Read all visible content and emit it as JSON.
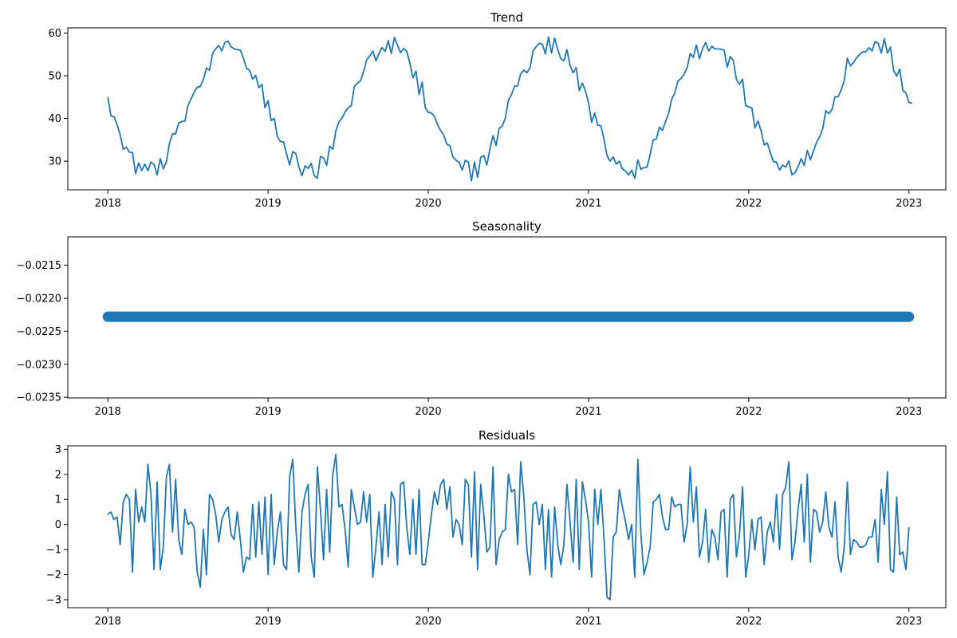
{
  "chart_data": [
    {
      "type": "line",
      "title": "Trend",
      "xlabel": "",
      "ylabel": "",
      "xlim": [
        2017.75,
        2023.23
      ],
      "ylim": [
        23.3,
        61.2
      ],
      "x_ticks": [
        2018,
        2019,
        2020,
        2021,
        2022,
        2023
      ],
      "x_tick_labels": [
        "2018",
        "2019",
        "2020",
        "2021",
        "2022",
        "2023"
      ],
      "y_ticks": [
        30,
        40,
        50,
        60
      ],
      "y_tick_labels": [
        "30",
        "40",
        "50",
        "60"
      ],
      "grid": false,
      "color": "#1f77b4",
      "series": [
        {
          "x_start": 2018.0,
          "x_step": 0.019231,
          "values": [
            45.0,
            40.6,
            40.4,
            38.5,
            36.2,
            32.8,
            33.3,
            32.1,
            32.0,
            27.1,
            29.6,
            27.8,
            29.3,
            27.8,
            29.8,
            29.2,
            26.8,
            30.6,
            28.2,
            29.8,
            34.2,
            36.4,
            36.4,
            38.9,
            39.3,
            39.4,
            43.0,
            44.6,
            46.1,
            47.3,
            47.5,
            49.1,
            51.8,
            51.3,
            55.2,
            56.3,
            57.1,
            55.8,
            57.8,
            58.1,
            56.8,
            56.3,
            56.1,
            56.0,
            54.1,
            51.8,
            51.2,
            49.2,
            50.1,
            47.2,
            48.0,
            42.5,
            44.2,
            39.5,
            40.0,
            35.8,
            34.6,
            34.5,
            31.7,
            29.1,
            32.2,
            31.8,
            28.6,
            26.6,
            28.9,
            28.3,
            29.5,
            26.6,
            26.0,
            31.1,
            30.8,
            29.0,
            33.5,
            32.8,
            37.1,
            39.2,
            40.1,
            41.5,
            42.5,
            43.0,
            47.5,
            48.3,
            48.8,
            51.0,
            53.7,
            54.6,
            55.8,
            53.5,
            55.2,
            56.6,
            55.7,
            58.2,
            55.2,
            59.0,
            57.2,
            55.4,
            56.4,
            55.7,
            53.0,
            49.5,
            51.1,
            45.6,
            48.5,
            42.6,
            41.4,
            41.3,
            40.5,
            38.5,
            37.2,
            36.1,
            34.0,
            33.6,
            31.0,
            30.2,
            29.7,
            27.9,
            30.2,
            29.8,
            25.4,
            29.8,
            26.2,
            30.9,
            31.3,
            29.1,
            32.8,
            36.0,
            33.7,
            37.7,
            38.2,
            40.1,
            44.3,
            45.6,
            47.6,
            47.6,
            50.5,
            51.3,
            50.7,
            51.9,
            55.8,
            56.8,
            57.6,
            57.4,
            55.1,
            59.1,
            55.3,
            58.8,
            56.1,
            54.0,
            53.5,
            56.1,
            52.4,
            50.7,
            51.9,
            46.5,
            48.3,
            46.4,
            43.7,
            39.1,
            41.3,
            38.4,
            38.3,
            35.2,
            31.3,
            30.0,
            31.0,
            29.3,
            30.0,
            28.2,
            27.7,
            26.8,
            27.9,
            26.0,
            30.3,
            28.1,
            28.5,
            28.6,
            31.6,
            35.0,
            35.2,
            38.0,
            37.2,
            39.3,
            41.2,
            44.5,
            46.0,
            48.7,
            49.4,
            50.3,
            51.9,
            55.2,
            54.3,
            57.2,
            54.0,
            56.3,
            57.8,
            55.8,
            56.9,
            56.3,
            56.3,
            56.2,
            56.0,
            52.0,
            54.5,
            53.5,
            49.1,
            48.0,
            49.2,
            43.0,
            42.7,
            42.5,
            37.8,
            39.4,
            37.1,
            33.8,
            34.3,
            32.0,
            29.9,
            29.8,
            27.9,
            29.1,
            28.6,
            30.1,
            26.8,
            27.3,
            28.7,
            30.6,
            29.0,
            32.5,
            30.3,
            32.4,
            34.4,
            35.7,
            37.6,
            41.8,
            41.1,
            42.1,
            45.1,
            45.1,
            46.7,
            48.9,
            54.1,
            52.3,
            53.1,
            54.2,
            55.0,
            55.6,
            55.6,
            56.6,
            55.8,
            58.0,
            57.6,
            55.3,
            58.7,
            55.3,
            56.7,
            51.3,
            49.9,
            51.6,
            46.6,
            45.9,
            43.8,
            43.5
          ]
        }
      ]
    },
    {
      "type": "scatter",
      "title": "Seasonality",
      "xlabel": "",
      "ylabel": "",
      "xlim": [
        2017.75,
        2023.23
      ],
      "ylim": [
        -0.02351,
        -0.02107
      ],
      "x_ticks": [
        2018,
        2019,
        2020,
        2021,
        2022,
        2023
      ],
      "x_tick_labels": [
        "2018",
        "2019",
        "2020",
        "2021",
        "2022",
        "2023"
      ],
      "y_ticks": [
        -0.0215,
        -0.022,
        -0.0225,
        -0.023,
        -0.0235
      ],
      "y_tick_labels": [
        "−0.0215",
        "−0.0220",
        "−0.0225",
        "−0.0230",
        "−0.0235"
      ],
      "grid": false,
      "color": "#1f77b4",
      "series": [
        {
          "x_range": [
            2018.0,
            2023.0
          ],
          "constant_value": -0.02228
        }
      ]
    },
    {
      "type": "line",
      "title": "Residuals",
      "xlabel": "",
      "ylabel": "",
      "xlim": [
        2017.75,
        2023.23
      ],
      "ylim": [
        -3.32,
        3.14
      ],
      "x_ticks": [
        2018,
        2019,
        2020,
        2021,
        2022,
        2023
      ],
      "x_tick_labels": [
        "2018",
        "2019",
        "2020",
        "2021",
        "2022",
        "2023"
      ],
      "y_ticks": [
        3,
        2,
        1,
        0,
        -1,
        -2,
        -3
      ],
      "y_tick_labels": [
        "3",
        "2",
        "1",
        "0",
        "−1",
        "−2",
        "−3"
      ],
      "grid": false,
      "color": "#1f77b4",
      "series": [
        {
          "x_start": 2018.0,
          "x_step": 0.019231,
          "values": [
            0.4,
            0.5,
            0.2,
            0.3,
            -0.8,
            0.9,
            1.2,
            1.0,
            -1.9,
            1.4,
            0.1,
            0.7,
            0.1,
            2.4,
            1.2,
            -1.8,
            1.7,
            -1.8,
            -0.9,
            1.9,
            2.4,
            -0.3,
            1.8,
            -0.6,
            -1.2,
            0.6,
            0.0,
            0.1,
            -0.1,
            -1.9,
            -2.5,
            -0.2,
            -2.0,
            1.2,
            1.0,
            0.4,
            -0.7,
            0.2,
            0.5,
            0.7,
            -0.4,
            -0.6,
            0.5,
            -0.6,
            -1.9,
            -1.3,
            -1.4,
            0.8,
            -1.3,
            0.9,
            -1.2,
            1.1,
            -2.0,
            1.2,
            -1.6,
            -0.3,
            0.5,
            -1.6,
            -1.8,
            1.9,
            2.6,
            -0.1,
            -1.9,
            0.5,
            1.2,
            1.6,
            -1.3,
            -2.1,
            2.3,
            0.6,
            -1.4,
            1.4,
            -1.1,
            2.0,
            2.8,
            0.7,
            0.8,
            -0.2,
            -1.7,
            1.4,
            0.7,
            0.0,
            0.1,
            1.3,
            0.1,
            1.2,
            -2.1,
            -0.9,
            0.5,
            -1.6,
            0.8,
            -1.3,
            1.3,
            1.0,
            -1.6,
            1.6,
            1.7,
            -0.1,
            -1.2,
            1.0,
            -1.2,
            1.4,
            -1.6,
            -1.6,
            -0.7,
            0.4,
            1.3,
            0.8,
            1.6,
            1.8,
            0.6,
            1.5,
            -0.5,
            0.2,
            0.0,
            -0.8,
            1.8,
            1.6,
            -1.3,
            2.1,
            -1.8,
            1.6,
            0.4,
            -1.1,
            -0.9,
            2.3,
            -1.6,
            -0.6,
            -0.3,
            -0.2,
            2.0,
            1.3,
            1.4,
            -0.8,
            2.5,
            1.1,
            -1.0,
            -2.0,
            0.8,
            0.9,
            0.0,
            0.8,
            -1.8,
            0.6,
            -2.1,
            0.7,
            -0.8,
            -1.6,
            -0.8,
            1.6,
            0.1,
            -1.5,
            1.8,
            -1.8,
            1.7,
            1.0,
            0.1,
            -2.1,
            1.4,
            0.0,
            1.4,
            -0.5,
            -2.9,
            -3.0,
            -0.5,
            -0.3,
            1.4,
            0.7,
            0.1,
            -0.6,
            0.0,
            -2.1,
            2.6,
            -0.4,
            -2.0,
            -1.5,
            -0.9,
            0.9,
            1.0,
            1.2,
            0.3,
            -0.2,
            -0.2,
            1.1,
            0.7,
            0.8,
            0.8,
            -0.7,
            0.0,
            2.3,
            0.1,
            1.5,
            -1.3,
            -0.7,
            0.6,
            -1.5,
            -0.2,
            -0.5,
            -1.4,
            0.5,
            0.6,
            -2.1,
            1.0,
            1.2,
            -1.3,
            -0.4,
            1.5,
            -2.1,
            -1.2,
            0.2,
            -1.0,
            0.2,
            0.3,
            -1.6,
            -0.3,
            0.1,
            -0.7,
            1.2,
            -1.0,
            1.2,
            1.5,
            2.5,
            -1.4,
            -0.7,
            0.6,
            1.6,
            -0.7,
            2.0,
            -1.5,
            0.6,
            0.5,
            -0.3,
            0.1,
            1.3,
            -0.1,
            -0.5,
            0.9,
            -1.3,
            -1.9,
            -0.9,
            1.7,
            -1.2,
            -0.6,
            -0.7,
            -0.9,
            -0.9,
            -0.8,
            -0.5,
            -0.5,
            0.2,
            -1.5,
            1.4,
            0.0,
            2.1,
            -1.8,
            -1.9,
            1.1,
            -1.2,
            -1.1,
            -1.8,
            -0.1
          ]
        }
      ]
    }
  ]
}
